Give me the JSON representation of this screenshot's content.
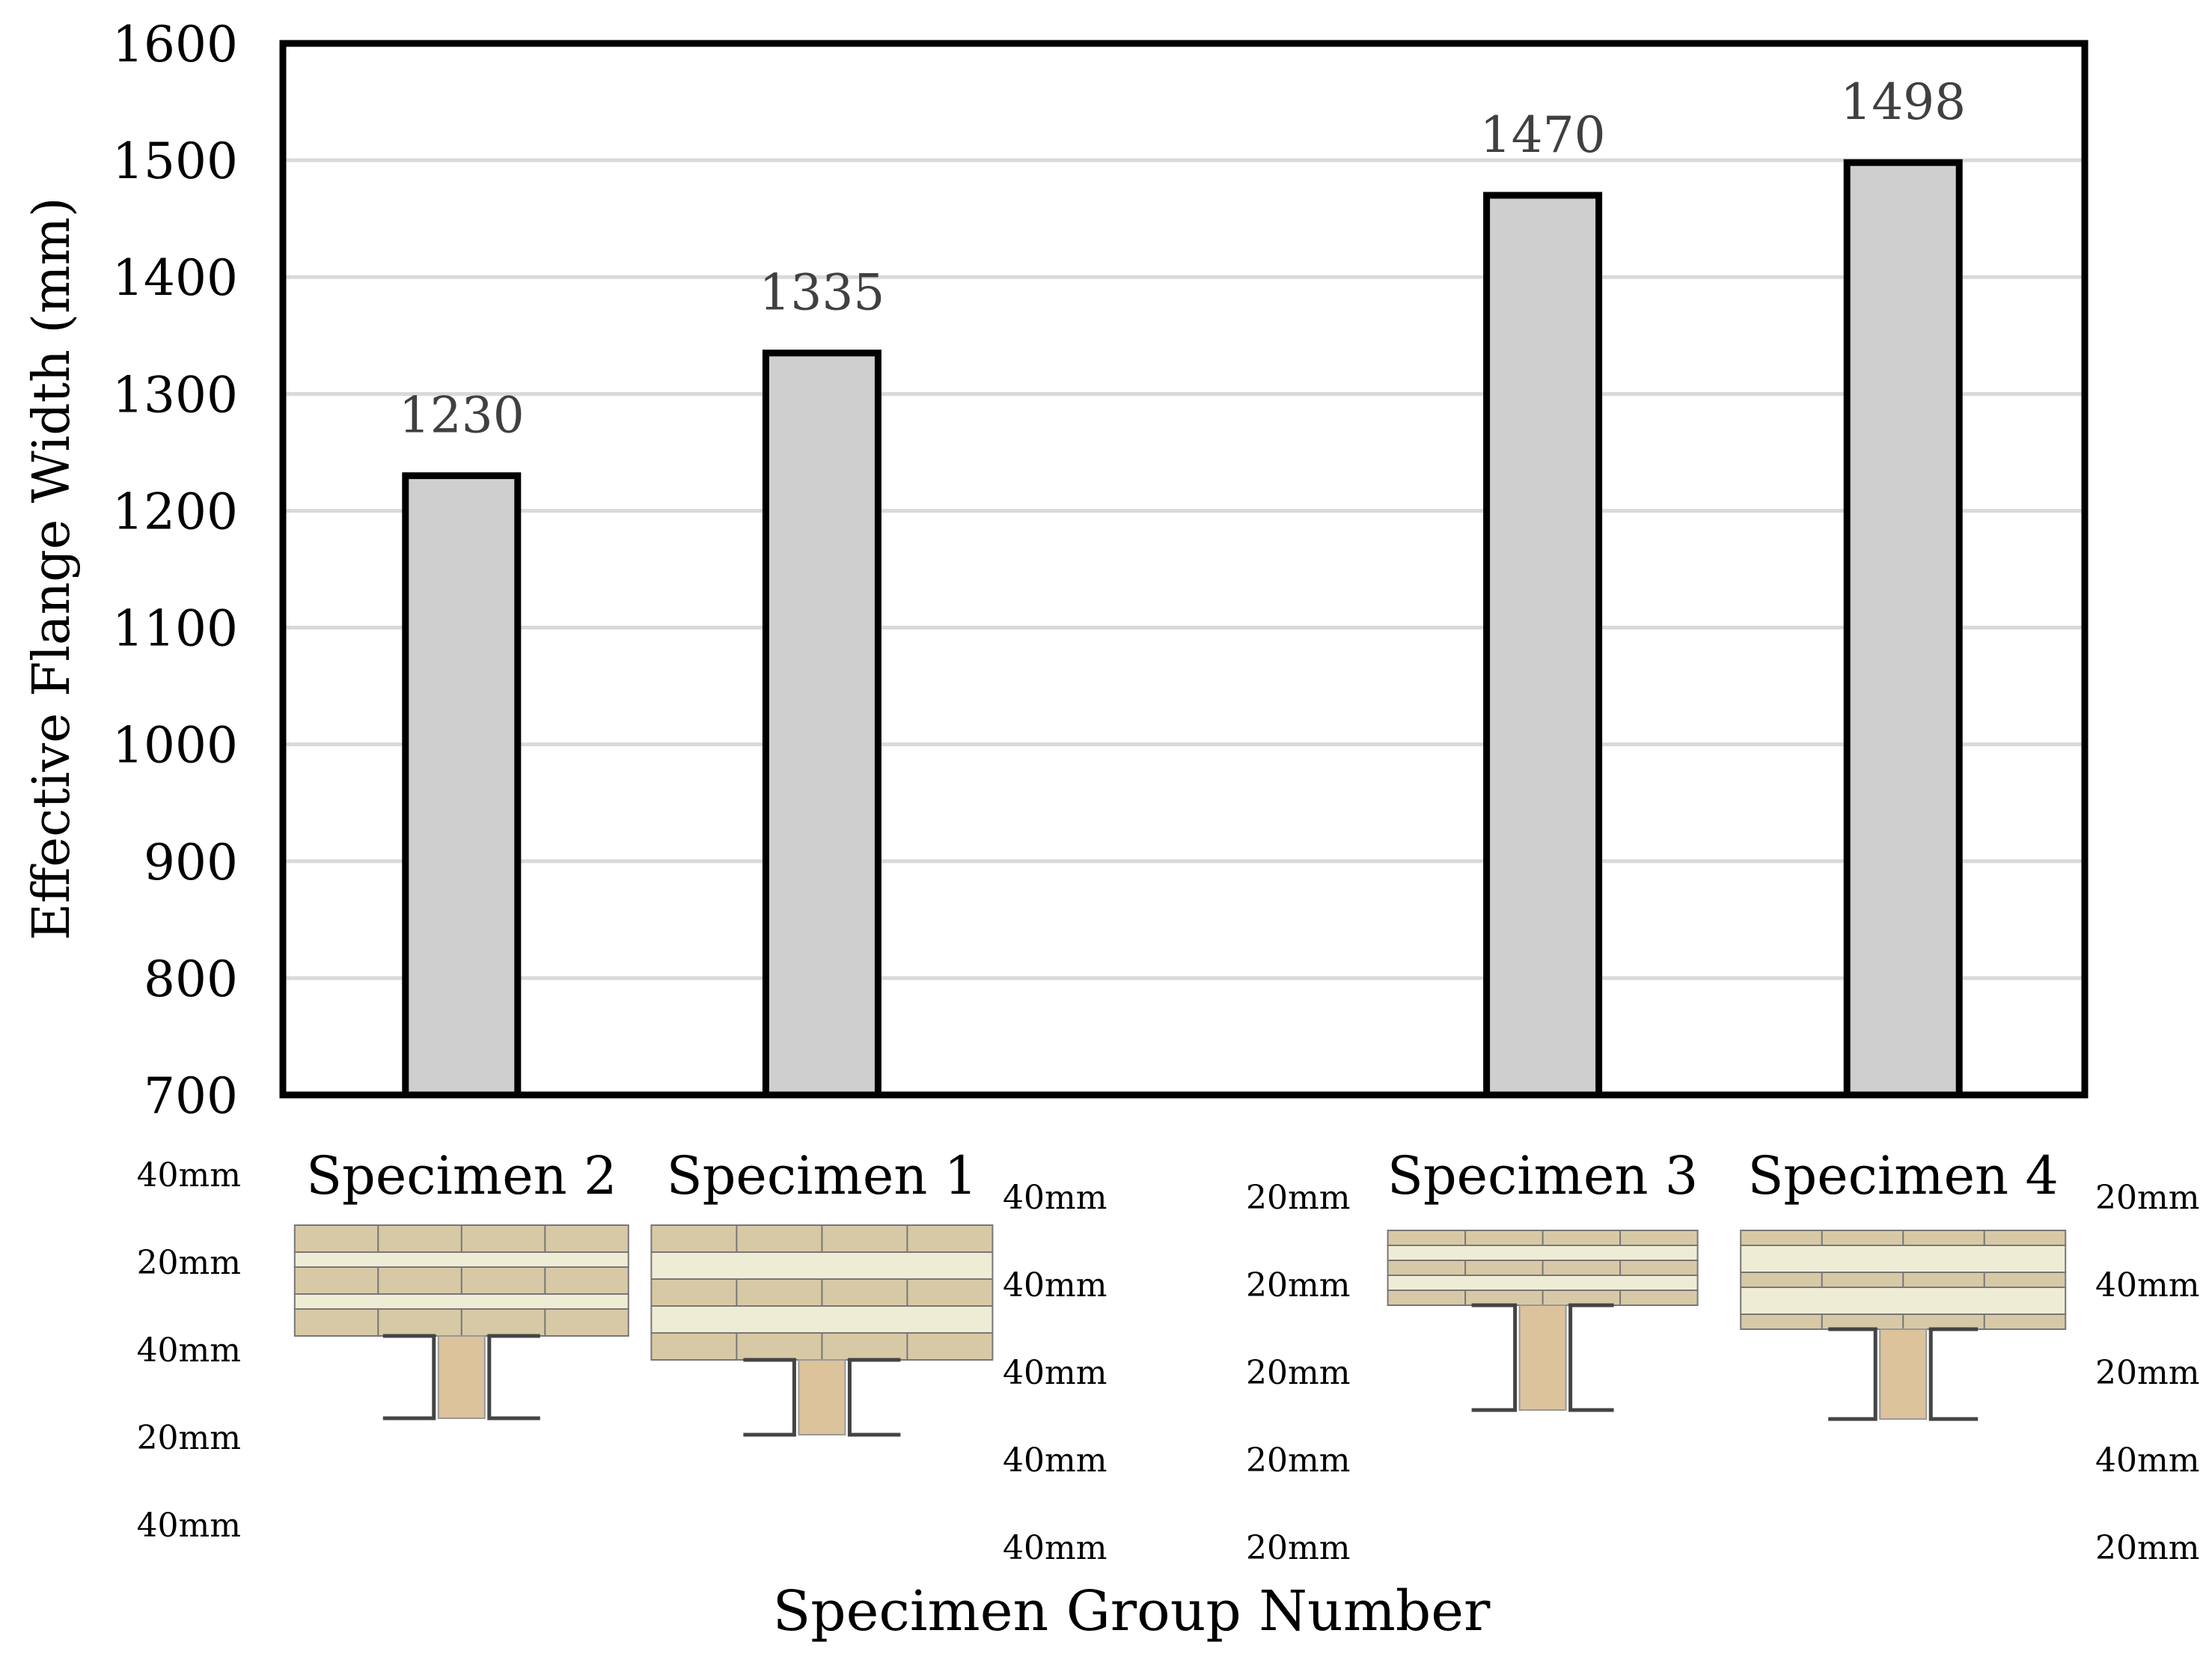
{
  "chart_data": {
    "type": "bar",
    "xlabel": "Specimen Group Number",
    "ylabel": "Effective Flange Width (mm)",
    "ylim": [
      700,
      1600
    ],
    "yticks": [
      700,
      800,
      900,
      1000,
      1100,
      1200,
      1300,
      1400,
      1500,
      1600
    ],
    "grid": true,
    "slots": 5,
    "categories": [
      "Specimen 2",
      "Specimen 1",
      "Specimen 3",
      "Specimen 4"
    ],
    "slot_index": [
      0,
      1,
      3,
      4
    ],
    "values": [
      1230,
      1335,
      1470,
      1498
    ],
    "data_labels": [
      "1230",
      "1335",
      "1470",
      "1498"
    ],
    "bar_color": "#d0cfd0",
    "bar_edge_color": "#000000",
    "layer_labels": [
      [
        "40mm",
        "20mm",
        "40mm",
        "20mm",
        "40mm"
      ],
      [
        "40mm",
        "40mm",
        "40mm",
        "40mm",
        "40mm"
      ],
      [
        "20mm",
        "20mm",
        "20mm",
        "20mm",
        "20mm"
      ],
      [
        "20mm",
        "40mm",
        "20mm",
        "40mm",
        "20mm"
      ]
    ]
  }
}
